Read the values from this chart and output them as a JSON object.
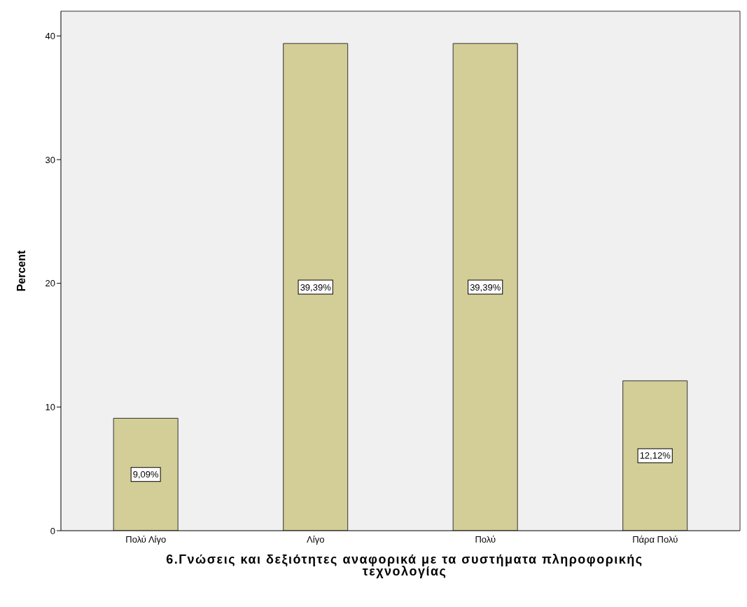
{
  "chart_data": {
    "type": "bar",
    "xlabel": "6.Γνώσεις και  δεξιότητες αναφορικά με τα συστήματα πληροφορικής τεχνολογίας",
    "ylabel": "Percent",
    "categories": [
      "Πολύ Λίγο",
      "Λίγο",
      "Πολύ",
      "Πάρα Πολύ"
    ],
    "values": [
      9.09,
      39.39,
      39.39,
      12.12
    ],
    "value_labels": [
      "9,09%",
      "39,39%",
      "39,39%",
      "12,12%"
    ],
    "color": "#d3ce97",
    "ylim": [
      0,
      42
    ],
    "yticks": [
      0,
      10,
      20,
      30,
      40
    ],
    "grid": false
  }
}
